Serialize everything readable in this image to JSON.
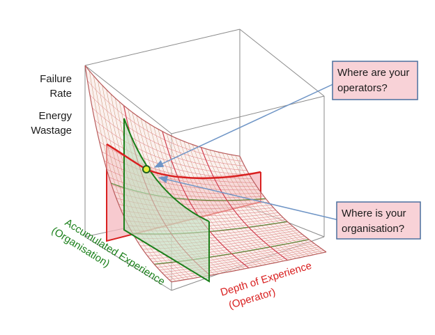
{
  "axes": {
    "vertical_label_1": [
      "Failure",
      "Rate"
    ],
    "vertical_label_2": [
      "Energy",
      "Wastage"
    ],
    "accumulated_label": [
      "Accumulated Experience",
      "(Organisation)"
    ],
    "depth_label": [
      "Depth of Experience",
      "(Operator)"
    ]
  },
  "callouts": {
    "operators": [
      "Where are your",
      "operators?"
    ],
    "organisation": [
      "Where is your",
      "organisation?"
    ]
  },
  "colors": {
    "green": "#1a7f1a",
    "red": "#d92020",
    "callout_fill": "#f8d2d7",
    "callout_border": "#4a6f9e",
    "arrow": "#6f95c6",
    "marker_fill": "#e4f03a"
  }
}
